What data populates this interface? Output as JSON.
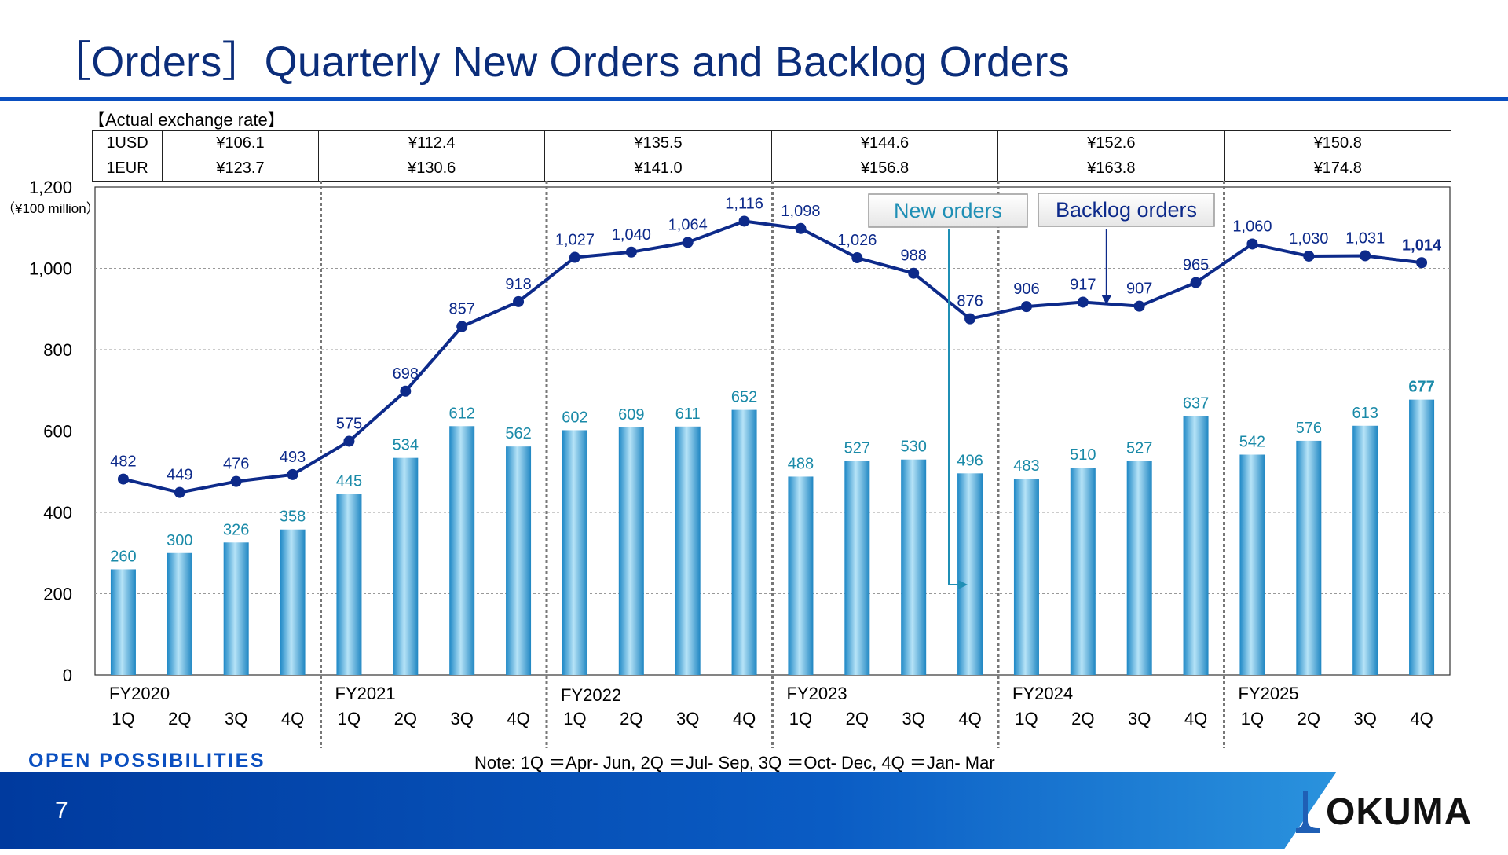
{
  "header": {
    "title": "［Orders］Quarterly New Orders and Backlog Orders"
  },
  "exchange": {
    "caption": "【Actual exchange rate】",
    "rows": [
      {
        "label": "1USD",
        "values": [
          "¥106.1",
          "¥112.4",
          "¥135.5",
          "¥144.6",
          "¥152.6",
          "¥150.8"
        ]
      },
      {
        "label": "1EUR",
        "values": [
          "¥123.7",
          "¥130.6",
          "¥141.0",
          "¥156.8",
          "¥163.8",
          "¥174.8"
        ]
      }
    ]
  },
  "chart_data": {
    "type": "bar",
    "ylabel": "（¥100 million）",
    "ylim": [
      0,
      1200
    ],
    "yticks": [
      "0",
      "200",
      "400",
      "600",
      "800",
      "1,000",
      "1,200"
    ],
    "grid": true,
    "fiscal_years": [
      "FY2020",
      "FY2021",
      "FY2022",
      "FY2023",
      "FY2024",
      "FY2025"
    ],
    "quarters": [
      "1Q",
      "2Q",
      "3Q",
      "4Q"
    ],
    "series": [
      {
        "name": "New orders",
        "type": "bar",
        "values": [
          260,
          300,
          326,
          358,
          445,
          534,
          612,
          562,
          602,
          609,
          611,
          652,
          488,
          527,
          530,
          496,
          483,
          510,
          527,
          637,
          542,
          576,
          613,
          677
        ],
        "labels": [
          "260",
          "300",
          "326",
          "358",
          "445",
          "534",
          "612",
          "562",
          "602",
          "609",
          "611",
          "652",
          "488",
          "527",
          "530",
          "496",
          "483",
          "510",
          "527",
          "637",
          "542",
          "576",
          "613",
          "677"
        ]
      },
      {
        "name": "Backlog orders",
        "type": "line",
        "values": [
          482,
          449,
          476,
          493,
          575,
          698,
          857,
          918,
          1027,
          1040,
          1064,
          1116,
          1098,
          1026,
          988,
          876,
          906,
          917,
          907,
          965,
          1060,
          1030,
          1031,
          1014
        ],
        "labels": [
          "482",
          "449",
          "476",
          "493",
          "575",
          "698",
          "857",
          "918",
          "1,027",
          "1,040",
          "1,064",
          "1,116",
          "1,098",
          "1,026",
          "988",
          "876",
          "906",
          "917",
          "907",
          "965",
          "1,060",
          "1,030",
          "1,031",
          "1,014"
        ]
      }
    ],
    "colors": {
      "bar": "#3aa6dc",
      "bar_label": "#1a8aa8",
      "line": "#0d2a8a",
      "grid": "#999999",
      "divider": "#777777"
    }
  },
  "footer": {
    "note": "Note: 1Q ＝Apr- Jun, 2Q ＝Jul- Sep, 3Q ＝Oct- Dec, 4Q ＝Jan- Mar",
    "tagline": "OPEN POSSIBILITIES",
    "page_number": "7",
    "logo_text": "OKUMA"
  }
}
